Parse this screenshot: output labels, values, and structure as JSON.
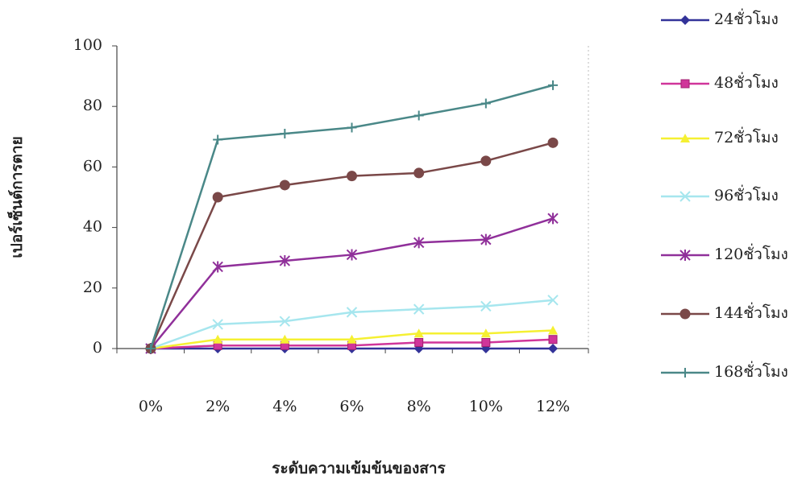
{
  "chart_data": {
    "type": "line",
    "x_label": "ระดับความเข้มข้นของสาร",
    "y_label": "เปอร์เซ็นต์การตาย",
    "categories": [
      "0%",
      "2%",
      "4%",
      "6%",
      "8%",
      "10%",
      "12%"
    ],
    "ylim": [
      0,
      100
    ],
    "yticks": [
      0,
      20,
      40,
      60,
      80,
      100
    ],
    "series": [
      {
        "name": "24ชั่วโมง",
        "color": "#333399",
        "marker": "diamond",
        "values": [
          0,
          0,
          0,
          0,
          0,
          0,
          0
        ]
      },
      {
        "name": "48ชั่วโมง",
        "color": "#d0359a",
        "marker": "square",
        "values": [
          0,
          1,
          1,
          1,
          2,
          2,
          3
        ]
      },
      {
        "name": "72ชั่วโมง",
        "color": "#f5f032",
        "marker": "triangle",
        "values": [
          0,
          3,
          3,
          3,
          5,
          5,
          6
        ]
      },
      {
        "name": "96ชั่วโมง",
        "color": "#a6e6ee",
        "marker": "cross",
        "values": [
          0,
          8,
          9,
          12,
          13,
          14,
          16
        ]
      },
      {
        "name": "120ชั่วโมง",
        "color": "#90309a",
        "marker": "asterisk",
        "values": [
          0,
          27,
          29,
          31,
          35,
          36,
          43
        ]
      },
      {
        "name": "144ชั่วโมง",
        "color": "#7a4848",
        "marker": "circle",
        "values": [
          0,
          50,
          54,
          57,
          58,
          62,
          68
        ]
      },
      {
        "name": "168ชั่วโมง",
        "color": "#4a8888",
        "marker": "plus",
        "values": [
          0,
          69,
          71,
          73,
          77,
          81,
          87
        ]
      }
    ]
  }
}
